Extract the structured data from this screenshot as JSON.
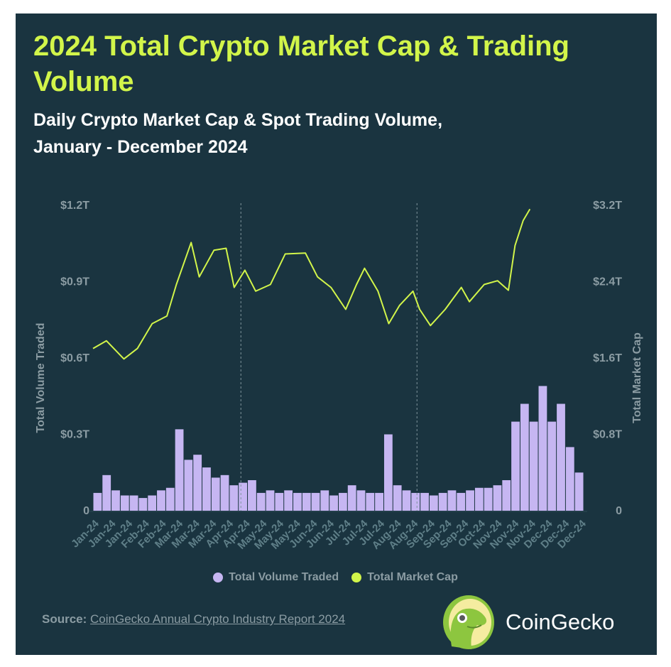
{
  "title": "2024 Total Crypto Market Cap & Trading Volume",
  "subtitle_line1": "Daily Crypto Market Cap & Spot Trading Volume,",
  "subtitle_line2": "January - December 2024",
  "source": {
    "label": "Source:",
    "link_text": "CoinGecko Annual Crypto Industry Report 2024"
  },
  "brand": {
    "name": "CoinGecko"
  },
  "colors": {
    "background": "#1a3440",
    "title": "#d2f54a",
    "volume": "#c6b6f2",
    "market_cap": "#d2f54a"
  },
  "chart_data": {
    "type": "bar+line",
    "title": "",
    "ylabel_left": "Total Volume Traded",
    "ylabel_right": "Total Market Cap",
    "ylim_left": [
      0,
      1.2
    ],
    "ylim_right": [
      0,
      3.2
    ],
    "yticks_left": [
      "0",
      "$0.3T",
      "$0.6T",
      "$0.9T",
      "$1.2T"
    ],
    "yticks_right": [
      "0",
      "$0.8T",
      "$1.6T",
      "$2.4T",
      "$3.2T"
    ],
    "xticks": [
      "Jan-24",
      "Jan-24",
      "Jan-24",
      "Feb-24",
      "Feb-24",
      "Mar-24",
      "Mar-24",
      "Mar-24",
      "Apr-24",
      "Apr-24",
      "May-24",
      "May-24",
      "May-24",
      "Jun-24",
      "Jun-24",
      "Jul-24",
      "Jul-24",
      "Jul-24",
      "Aug-24",
      "Aug-24",
      "Sep-24",
      "Sep-24",
      "Sep-24",
      "Oct-24",
      "Nov-24",
      "Nov-24",
      "Nov-24",
      "Dec-24",
      "Dec-24",
      "Dec-24"
    ],
    "xrange": [
      "2024-01-01",
      "2024-12-31"
    ],
    "reference_lines": [
      "2024-04-20",
      "2024-08-29"
    ],
    "grid": false,
    "legend_placement": "bottom",
    "series": [
      {
        "name": "Total Volume Traded",
        "type": "bar",
        "axis": "left",
        "unit": "T USD",
        "frequency": "weekly (approx.)",
        "values": [
          0.07,
          0.14,
          0.08,
          0.06,
          0.06,
          0.05,
          0.06,
          0.08,
          0.09,
          0.32,
          0.2,
          0.22,
          0.17,
          0.13,
          0.14,
          0.1,
          0.11,
          0.12,
          0.07,
          0.08,
          0.07,
          0.08,
          0.07,
          0.07,
          0.07,
          0.08,
          0.06,
          0.07,
          0.1,
          0.08,
          0.07,
          0.07,
          0.3,
          0.1,
          0.08,
          0.07,
          0.07,
          0.06,
          0.07,
          0.08,
          0.07,
          0.08,
          0.09,
          0.09,
          0.1,
          0.12,
          0.35,
          0.42,
          0.35,
          0.49,
          0.35,
          0.42,
          0.25,
          0.15
        ]
      },
      {
        "name": "Total Market Cap",
        "type": "line",
        "axis": "right",
        "unit": "T USD",
        "points": [
          [
            "2024-01-01",
            1.7
          ],
          [
            "2024-01-11",
            1.78
          ],
          [
            "2024-01-24",
            1.59
          ],
          [
            "2024-02-03",
            1.7
          ],
          [
            "2024-02-14",
            1.96
          ],
          [
            "2024-02-25",
            2.04
          ],
          [
            "2024-03-03",
            2.37
          ],
          [
            "2024-03-14",
            2.81
          ],
          [
            "2024-03-20",
            2.45
          ],
          [
            "2024-03-31",
            2.73
          ],
          [
            "2024-04-09",
            2.75
          ],
          [
            "2024-04-15",
            2.34
          ],
          [
            "2024-04-23",
            2.52
          ],
          [
            "2024-05-01",
            2.3
          ],
          [
            "2024-05-12",
            2.37
          ],
          [
            "2024-05-23",
            2.69
          ],
          [
            "2024-06-07",
            2.7
          ],
          [
            "2024-06-16",
            2.45
          ],
          [
            "2024-06-26",
            2.34
          ],
          [
            "2024-07-07",
            2.11
          ],
          [
            "2024-07-15",
            2.37
          ],
          [
            "2024-07-21",
            2.54
          ],
          [
            "2024-07-31",
            2.3
          ],
          [
            "2024-08-08",
            1.96
          ],
          [
            "2024-08-16",
            2.15
          ],
          [
            "2024-08-26",
            2.3
          ],
          [
            "2024-08-31",
            2.11
          ],
          [
            "2024-09-08",
            1.94
          ],
          [
            "2024-09-19",
            2.11
          ],
          [
            "2024-10-01",
            2.34
          ],
          [
            "2024-10-07",
            2.19
          ],
          [
            "2024-10-18",
            2.37
          ],
          [
            "2024-10-28",
            2.41
          ],
          [
            "2024-11-05",
            2.31
          ],
          [
            "2024-11-10",
            2.78
          ],
          [
            "2024-11-16",
            3.04
          ],
          [
            "2024-11-21",
            3.16
          ]
        ]
      }
    ]
  }
}
